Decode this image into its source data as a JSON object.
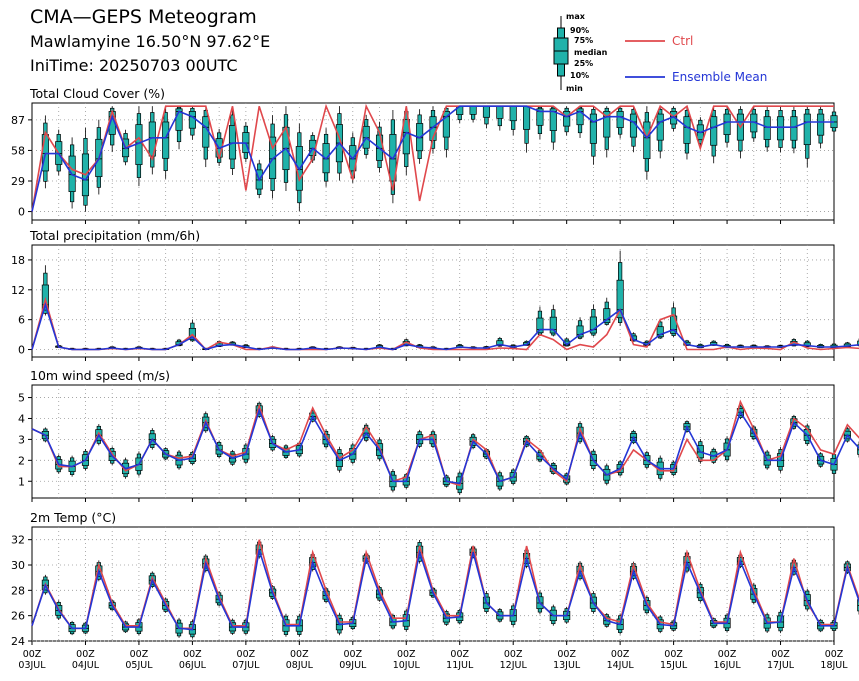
{
  "header": {
    "title": "CMA—GEPS Meteogram",
    "location": "Mawlamyine 16.50°N 97.62°E",
    "init_time": "IniTime: 20250703 00UTC"
  },
  "legend": {
    "box_labels": [
      "max",
      "90%",
      "75%",
      "median",
      "25%",
      "10%",
      "min"
    ],
    "ctrl_label": "Ctrl",
    "mean_label": "Ensemble Mean",
    "colors": {
      "ctrl": "#e0484c",
      "mean": "#2436d6",
      "box": "#20b2aa"
    }
  },
  "x_axis": {
    "tick_labels": [
      [
        "00Z",
        "03JUL"
      ],
      [
        "00Z",
        "04JUL"
      ],
      [
        "00Z",
        "05JUL"
      ],
      [
        "00Z",
        "06JUL"
      ],
      [
        "00Z",
        "07JUL"
      ],
      [
        "00Z",
        "08JUL"
      ],
      [
        "00Z",
        "09JUL"
      ],
      [
        "00Z",
        "10JUL"
      ],
      [
        "00Z",
        "11JUL"
      ],
      [
        "00Z",
        "12JUL"
      ],
      [
        "00Z",
        "13JUL"
      ],
      [
        "00Z",
        "14JUL"
      ],
      [
        "00Z",
        "15JUL"
      ],
      [
        "00Z",
        "16JUL"
      ],
      [
        "00Z",
        "17JUL"
      ],
      [
        "00Z",
        "18JUL"
      ]
    ]
  },
  "chart_data": [
    {
      "type": "box+line",
      "title": "Total Cloud Cover (%)",
      "ylim": [
        -8,
        103
      ],
      "yticks": [
        0,
        29,
        58,
        87
      ],
      "step_hours": 6,
      "ctrl": [
        0,
        75,
        55,
        40,
        35,
        50,
        95,
        60,
        70,
        50,
        100,
        100,
        100,
        100,
        50,
        100,
        20,
        100,
        60,
        80,
        30,
        50,
        100,
        70,
        30,
        100,
        75,
        20,
        100,
        10,
        70,
        100,
        100,
        100,
        100,
        100,
        100,
        100,
        100,
        100,
        90,
        100,
        100,
        90,
        100,
        100,
        70,
        100,
        90,
        100,
        60,
        100,
        100,
        80,
        100,
        100,
        100,
        100,
        100,
        100,
        100
      ],
      "mean": [
        0,
        55,
        55,
        35,
        30,
        50,
        90,
        60,
        65,
        70,
        70,
        95,
        90,
        80,
        60,
        65,
        65,
        30,
        50,
        60,
        40,
        60,
        50,
        65,
        50,
        70,
        60,
        50,
        75,
        70,
        80,
        90,
        100,
        100,
        100,
        100,
        100,
        100,
        95,
        95,
        90,
        95,
        85,
        90,
        90,
        85,
        70,
        85,
        90,
        80,
        75,
        80,
        85,
        85,
        85,
        80,
        80,
        80,
        85,
        85,
        85
      ]
    },
    {
      "type": "box+line",
      "title": "Total precipitation (mm/6h)",
      "ylim": [
        -1.5,
        21
      ],
      "yticks": [
        0,
        6,
        12,
        18
      ],
      "step_hours": 6,
      "ctrl": [
        0,
        10,
        0.5,
        0,
        0,
        0,
        0.2,
        0,
        0.2,
        0,
        0,
        1,
        3,
        0,
        1.5,
        1,
        0,
        0,
        0.5,
        0,
        0,
        0,
        0,
        0.3,
        0.2,
        0,
        0.3,
        0,
        1.5,
        0.3,
        0,
        0,
        0,
        0,
        0,
        0.3,
        0.2,
        0,
        3,
        2,
        0,
        1,
        0.5,
        3,
        8,
        1,
        0.5,
        6,
        7,
        0,
        0,
        0,
        0.5,
        0,
        0.3,
        0.2,
        0,
        1.5,
        0.3,
        0,
        0.2,
        0.4,
        0.2,
        0,
        0.1
      ],
      "mean": [
        0,
        9,
        0.5,
        0,
        0,
        0,
        0.3,
        0,
        0.3,
        0,
        0,
        1,
        2.5,
        0,
        0.8,
        1,
        0.5,
        0,
        0.3,
        0,
        0,
        0.3,
        0,
        0.3,
        0.2,
        0,
        0.5,
        0,
        1,
        0.5,
        0.3,
        0,
        0.5,
        0.3,
        0.3,
        1,
        0.5,
        1,
        4,
        4,
        1,
        3,
        4,
        6,
        8,
        2,
        1,
        3,
        4,
        1,
        0.5,
        1,
        0.5,
        0.5,
        0.5,
        0.5,
        0.5,
        1,
        0.8,
        0.5,
        0.5,
        0.7,
        1,
        1,
        0.8
      ]
    },
    {
      "type": "box+line",
      "title": "10m wind speed (m/s)",
      "ylim": [
        0.2,
        5.6
      ],
      "yticks": [
        1,
        2,
        3,
        4,
        5
      ],
      "step_hours": 6,
      "ctrl": [
        3.5,
        3.2,
        1.7,
        1.7,
        2.0,
        3.3,
        2.3,
        1.5,
        1.8,
        3.0,
        2.3,
        2.1,
        2.2,
        3.9,
        2.5,
        2.2,
        2.4,
        4.6,
        2.8,
        2.5,
        2.8,
        4.5,
        3.2,
        2.1,
        2.5,
        3.6,
        2.6,
        1.0,
        1.2,
        3.0,
        3.2,
        1.0,
        0.8,
        3.0,
        2.5,
        1.0,
        1.2,
        3.0,
        2.5,
        1.5,
        1.0,
        3.5,
        2.0,
        1.3,
        1.5,
        2.5,
        2.0,
        1.5,
        1.5,
        3.0,
        2.0,
        2.0,
        2.5,
        4.8,
        3.5,
        2.0,
        2.2,
        4.0,
        3.5,
        2.5,
        2.3,
        3.7,
        3.0,
        2.0,
        2.4
      ],
      "mean": [
        3.5,
        3.2,
        1.8,
        1.7,
        2.0,
        3.2,
        2.2,
        1.6,
        1.8,
        3.0,
        2.3,
        2.0,
        2.1,
        3.8,
        2.5,
        2.1,
        2.3,
        4.4,
        2.8,
        2.4,
        2.5,
        4.1,
        3.0,
        2.0,
        2.3,
        3.3,
        2.5,
        1.0,
        1.0,
        3.0,
        3.0,
        1.0,
        0.9,
        2.9,
        2.3,
        1.0,
        1.2,
        2.9,
        2.2,
        1.6,
        1.1,
        3.3,
        2.0,
        1.3,
        1.6,
        3.1,
        2.0,
        1.6,
        1.6,
        3.6,
        2.4,
        2.2,
        2.5,
        4.3,
        3.3,
        2.0,
        2.0,
        3.8,
        3.2,
        2.0,
        1.8,
        3.2,
        2.5,
        1.5,
        1.8
      ]
    },
    {
      "type": "box+line",
      "title": "2m Temp (°C)",
      "ylim": [
        24,
        33
      ],
      "yticks": [
        24,
        26,
        28,
        30,
        32
      ],
      "step_hours": 6,
      "ctrl": [
        25.2,
        28.5,
        26.5,
        25.0,
        25.0,
        30.0,
        27.0,
        25.2,
        25.2,
        29.0,
        27.0,
        25.0,
        25.0,
        30.5,
        27.5,
        25.2,
        25.2,
        32.0,
        28.0,
        25.3,
        25.3,
        31.0,
        28.0,
        25.5,
        25.5,
        31.0,
        28.0,
        25.8,
        25.8,
        31.5,
        28.0,
        26.0,
        26.0,
        31.5,
        27.0,
        26.0,
        26.0,
        31.5,
        27.0,
        26.0,
        26.0,
        30.0,
        27.0,
        25.8,
        25.5,
        30.0,
        27.0,
        25.5,
        25.3,
        31.0,
        28.0,
        25.5,
        25.5,
        31.0,
        28.0,
        25.5,
        25.5,
        30.5,
        27.0,
        25.3,
        25.3,
        30.0,
        27.0,
        25.5,
        25.2
      ],
      "mean": [
        25.2,
        28.4,
        26.4,
        25.0,
        25.0,
        29.5,
        26.8,
        25.1,
        25.1,
        28.8,
        26.8,
        25.0,
        24.9,
        30.1,
        27.3,
        25.1,
        25.1,
        31.2,
        27.8,
        25.2,
        25.2,
        30.2,
        27.6,
        25.3,
        25.4,
        30.5,
        27.7,
        25.5,
        25.6,
        31.0,
        27.8,
        25.8,
        25.9,
        31.0,
        27.0,
        26.0,
        26.0,
        30.5,
        27.0,
        26.0,
        26.0,
        29.5,
        27.0,
        25.6,
        25.3,
        29.5,
        26.8,
        25.3,
        25.2,
        30.2,
        27.8,
        25.4,
        25.4,
        30.3,
        27.7,
        25.4,
        25.5,
        29.8,
        27.2,
        25.2,
        25.2,
        29.8,
        26.8,
        25.4,
        25.1
      ]
    }
  ]
}
